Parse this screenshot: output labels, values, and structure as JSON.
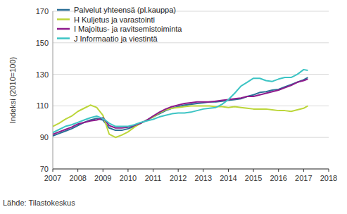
{
  "chart_data": {
    "type": "line",
    "y_label": "Indeksi (2010=100)",
    "source": "Lähde: Tilastokeskus",
    "x": [
      2007,
      2007.25,
      2007.5,
      2007.75,
      2008,
      2008.25,
      2008.5,
      2008.75,
      2009,
      2009.25,
      2009.5,
      2009.75,
      2010,
      2010.25,
      2010.5,
      2010.75,
      2011,
      2011.25,
      2011.5,
      2011.75,
      2012,
      2012.25,
      2012.5,
      2012.75,
      2013,
      2013.25,
      2013.5,
      2013.75,
      2014,
      2014.25,
      2014.5,
      2014.75,
      2015,
      2015.25,
      2015.5,
      2015.75,
      2016,
      2016.25,
      2016.5,
      2016.75,
      2017,
      2017.17
    ],
    "series": [
      {
        "name": "Palvelut yhteensä (pl.kauppa)",
        "color": "#2a6f97",
        "values": [
          91,
          92.5,
          94,
          95.5,
          97.5,
          99.5,
          101,
          102,
          101,
          96,
          94.5,
          94.5,
          95.5,
          97,
          99,
          101,
          103,
          105,
          107,
          108.5,
          109.5,
          110.5,
          111,
          111.5,
          112,
          112.5,
          112.5,
          113,
          113.5,
          114,
          114.5,
          116,
          117,
          118.5,
          119,
          120,
          120.5,
          122,
          123.5,
          125,
          126.5,
          128
        ]
      },
      {
        "name": "H Kuljetus ja varastointi",
        "color": "#bcd63a",
        "values": [
          97,
          99,
          101.5,
          103.5,
          106.5,
          108.5,
          110.5,
          109,
          104,
          92,
          90,
          91.5,
          93.5,
          96.5,
          99,
          101,
          103,
          105.5,
          107.5,
          108.5,
          109,
          109.5,
          110,
          110,
          110,
          110,
          109.5,
          109.5,
          109,
          109.5,
          109,
          108.5,
          108,
          108,
          108,
          107.5,
          107,
          107,
          106.5,
          107.5,
          108.5,
          110
        ]
      },
      {
        "name": "I Majoitus- ja ravitsemistoiminta",
        "color": "#8e1b8c",
        "values": [
          92,
          93.5,
          95,
          96.5,
          98.5,
          99.5,
          100.5,
          101,
          102.5,
          97.5,
          96,
          96,
          96.5,
          97.5,
          99,
          101,
          103.5,
          106,
          108,
          109.5,
          110.5,
          111.5,
          112,
          112.5,
          112.5,
          112.5,
          113,
          113.5,
          114,
          114.5,
          115,
          116,
          116,
          117,
          118,
          119,
          120,
          121.5,
          123,
          125,
          126,
          127
        ]
      },
      {
        "name": "J Informaatio ja viestintä",
        "color": "#3cc4c4",
        "values": [
          93,
          95,
          97,
          98,
          99.5,
          101,
          102.5,
          103.5,
          102,
          99,
          97,
          97,
          97,
          98,
          99.5,
          100.5,
          101.5,
          103,
          104,
          105,
          105.5,
          105.5,
          106,
          107,
          108,
          108.5,
          109,
          111,
          114,
          118,
          122.5,
          125,
          127.5,
          127.5,
          126,
          125.5,
          127,
          128,
          128,
          130,
          133,
          132.5
        ]
      }
    ],
    "xlim": [
      2007,
      2018
    ],
    "xticks": [
      2007,
      2008,
      2009,
      2010,
      2011,
      2012,
      2013,
      2014,
      2015,
      2016,
      2017,
      2018
    ],
    "ylim": [
      70,
      170
    ],
    "yticks": [
      70,
      90,
      110,
      130,
      150,
      170
    ],
    "grid": true,
    "legend": "top-left"
  }
}
